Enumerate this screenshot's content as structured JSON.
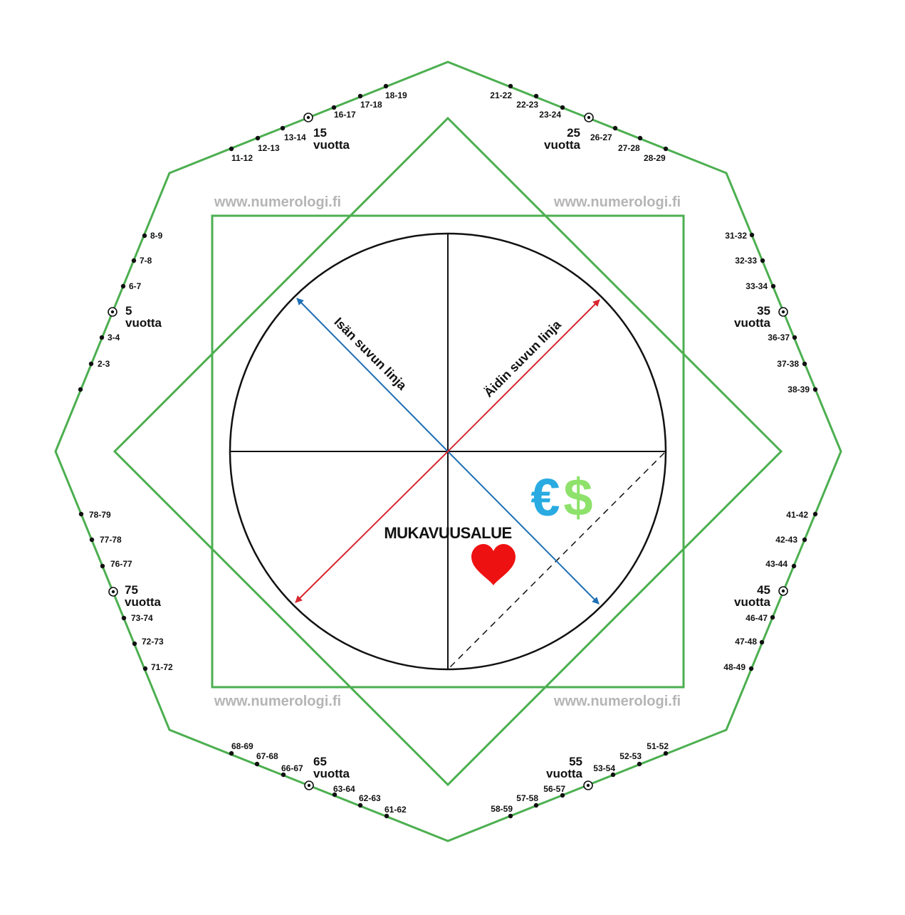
{
  "watermarks": [
    "www.numerologi.fi",
    "www.numerologi.fi",
    "www.numerologi.fi",
    "www.numerologi.fi"
  ],
  "axis_labels": {
    "father_line": "Isän suvun linja",
    "mother_line": "Äidin suvun linja"
  },
  "comfort_zone": "MUKAVUUSALUE",
  "currency": {
    "euro": "€",
    "dollar": "$"
  },
  "milestone_word": "vuotta",
  "milestones": [
    "5",
    "15",
    "25",
    "35",
    "45",
    "55",
    "65",
    "75"
  ],
  "age_ticks": [
    "2-3",
    "3-4",
    "6-7",
    "7-8",
    "8-9",
    "11-12",
    "12-13",
    "13-14",
    "16-17",
    "17-18",
    "18-19",
    "21-22",
    "22-23",
    "23-24",
    "26-27",
    "27-28",
    "28-29",
    "31-32",
    "32-33",
    "33-34",
    "36-37",
    "37-38",
    "38-39",
    "41-42",
    "42-43",
    "43-44",
    "46-47",
    "47-48",
    "48-49",
    "51-52",
    "52-53",
    "53-54",
    "56-57",
    "57-58",
    "58-59",
    "61-62",
    "62-63",
    "63-64",
    "66-67",
    "67-68",
    "68-69",
    "71-72",
    "72-73",
    "73-74",
    "76-77",
    "77-78",
    "78-79"
  ],
  "colors": {
    "frame_green": "#4caf50",
    "father_blue": "#1f6fb5",
    "mother_red": "#d8262e",
    "heart_red": "#ee1111",
    "euro_blue": "#29abe2",
    "dollar_green": "#8ee26b",
    "watermark_gray": "#b5b5b5"
  }
}
